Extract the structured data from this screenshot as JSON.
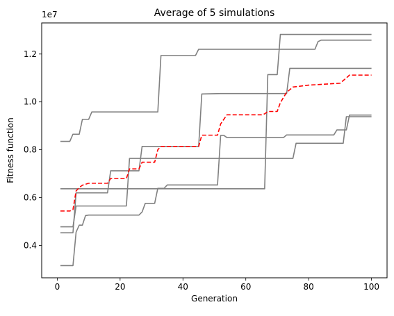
{
  "chart_data": {
    "type": "line",
    "title": "Average of 5 simulations",
    "xlabel": "Generation",
    "ylabel": "Fitness function",
    "y_offset_label": "1e7",
    "xlim": [
      -4.95,
      104.95
    ],
    "ylim": [
      2650000,
      13300000
    ],
    "x_ticks": [
      0,
      20,
      40,
      60,
      80,
      100
    ],
    "x_tick_labels": [
      "0",
      "20",
      "40",
      "60",
      "80",
      "100"
    ],
    "y_ticks": [
      4000000,
      6000000,
      8000000,
      10000000,
      12000000
    ],
    "y_tick_labels": [
      "0.4",
      "0.6",
      "0.8",
      "1.0",
      "1.2"
    ],
    "grid": false,
    "series": [
      {
        "color": "#808080",
        "linestyle": "solid",
        "points": [
          [
            1,
            8350000
          ],
          [
            4,
            8350000
          ],
          [
            5,
            8650000
          ],
          [
            7,
            8650000
          ],
          [
            8,
            9270000
          ],
          [
            9,
            9270000
          ],
          [
            10,
            9270000
          ],
          [
            11,
            9580000
          ],
          [
            32,
            9580000
          ],
          [
            33,
            11940000
          ],
          [
            44,
            11940000
          ],
          [
            45,
            12200000
          ],
          [
            82,
            12200000
          ],
          [
            83,
            12520000
          ],
          [
            84,
            12580000
          ],
          [
            100,
            12580000
          ]
        ]
      },
      {
        "color": "#808080",
        "linestyle": "solid",
        "points": [
          [
            1,
            6370000
          ],
          [
            5,
            6370000
          ],
          [
            6,
            6370000
          ],
          [
            47,
            6370000
          ],
          [
            48,
            6370000
          ],
          [
            66,
            6370000
          ],
          [
            67,
            11140000
          ],
          [
            70,
            11140000
          ],
          [
            71,
            12820000
          ],
          [
            100,
            12820000
          ]
        ]
      },
      {
        "color": "#808080",
        "linestyle": "solid",
        "points": [
          [
            1,
            4780000
          ],
          [
            5,
            4780000
          ],
          [
            6,
            5650000
          ],
          [
            22,
            5650000
          ],
          [
            23,
            7640000
          ],
          [
            75,
            7640000
          ],
          [
            76,
            8270000
          ],
          [
            91,
            8270000
          ],
          [
            92,
            9380000
          ],
          [
            100,
            9380000
          ]
        ]
      },
      {
        "color": "#808080",
        "linestyle": "solid",
        "points": [
          [
            1,
            4530000
          ],
          [
            5,
            4530000
          ],
          [
            6,
            6200000
          ],
          [
            16,
            6200000
          ],
          [
            17,
            7120000
          ],
          [
            26,
            7120000
          ],
          [
            27,
            8140000
          ],
          [
            45,
            8140000
          ],
          [
            46,
            10330000
          ],
          [
            52,
            10350000
          ],
          [
            73,
            10350000
          ],
          [
            74,
            11400000
          ],
          [
            100,
            11400000
          ]
        ]
      },
      {
        "color": "#808080",
        "linestyle": "solid",
        "points": [
          [
            1,
            3160000
          ],
          [
            5,
            3160000
          ],
          [
            6,
            4560000
          ],
          [
            7,
            4850000
          ],
          [
            8,
            4850000
          ],
          [
            9,
            5250000
          ],
          [
            10,
            5270000
          ],
          [
            26,
            5270000
          ],
          [
            27,
            5400000
          ],
          [
            28,
            5760000
          ],
          [
            31,
            5760000
          ],
          [
            32,
            6390000
          ],
          [
            34,
            6390000
          ],
          [
            35,
            6530000
          ],
          [
            51,
            6530000
          ],
          [
            52,
            8600000
          ],
          [
            53,
            8600000
          ],
          [
            54,
            8510000
          ],
          [
            72,
            8510000
          ],
          [
            73,
            8620000
          ],
          [
            88,
            8620000
          ],
          [
            89,
            8830000
          ],
          [
            92,
            8830000
          ],
          [
            93,
            9450000
          ],
          [
            100,
            9450000
          ]
        ]
      },
      {
        "color": "#ff0000",
        "linestyle": "dashed",
        "points": [
          [
            1,
            5440000
          ],
          [
            4,
            5440000
          ],
          [
            5,
            5500000
          ],
          [
            6,
            6280000
          ],
          [
            7,
            6420000
          ],
          [
            8,
            6520000
          ],
          [
            10,
            6600000
          ],
          [
            16,
            6600000
          ],
          [
            17,
            6800000
          ],
          [
            22,
            6800000
          ],
          [
            23,
            7200000
          ],
          [
            26,
            7200000
          ],
          [
            27,
            7480000
          ],
          [
            31,
            7480000
          ],
          [
            32,
            8000000
          ],
          [
            33,
            8140000
          ],
          [
            45,
            8140000
          ],
          [
            46,
            8610000
          ],
          [
            51,
            8610000
          ],
          [
            52,
            9080000
          ],
          [
            54,
            9460000
          ],
          [
            65,
            9460000
          ],
          [
            66,
            9500000
          ],
          [
            67,
            9600000
          ],
          [
            70,
            9600000
          ],
          [
            71,
            9970000
          ],
          [
            73,
            10400000
          ],
          [
            75,
            10620000
          ],
          [
            80,
            10700000
          ],
          [
            85,
            10740000
          ],
          [
            90,
            10780000
          ],
          [
            92,
            11000000
          ],
          [
            93,
            11120000
          ],
          [
            100,
            11120000
          ]
        ]
      }
    ]
  }
}
